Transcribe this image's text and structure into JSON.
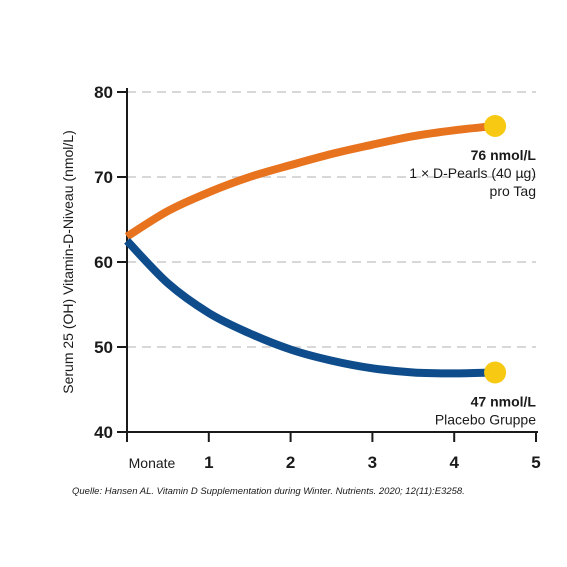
{
  "chart_data": {
    "type": "line",
    "ylabel": "Serum 25 (OH) Vitamin-D-Niveau (nmol/L)",
    "xlabel_first_tick": "Monate",
    "xlim": [
      0,
      5
    ],
    "ylim": [
      40,
      80
    ],
    "x_ticks": [
      "1",
      "2",
      "3",
      "4",
      "5"
    ],
    "y_ticks": [
      40,
      50,
      60,
      70,
      80
    ],
    "grid": "horizontal dashed",
    "series": [
      {
        "color": "#e8731e",
        "x": [
          0,
          0.5,
          1,
          1.5,
          2,
          2.5,
          3,
          3.5,
          4,
          4.5
        ],
        "y": [
          63,
          66,
          68.2,
          70,
          71.4,
          72.7,
          73.8,
          74.8,
          75.5,
          76
        ],
        "end_label_value": "76 nmol/L",
        "end_label_lines": [
          "1 × D-Pearls (40 µg)",
          "pro Tag"
        ]
      },
      {
        "color": "#0e4c8c",
        "x": [
          0,
          0.5,
          1,
          1.5,
          2,
          2.5,
          3,
          3.5,
          4,
          4.5
        ],
        "y": [
          62.5,
          57.5,
          54,
          51.6,
          49.7,
          48.4,
          47.5,
          47,
          46.9,
          47
        ],
        "end_label_value": "47 nmol/L",
        "end_label_lines": [
          "Placebo Gruppe"
        ]
      }
    ],
    "marker_color": "#f7c913"
  },
  "source": "Quelle: Hansen AL. Vitamin D Supplementation during Winter. Nutrients. 2020; 12(11):E3258."
}
